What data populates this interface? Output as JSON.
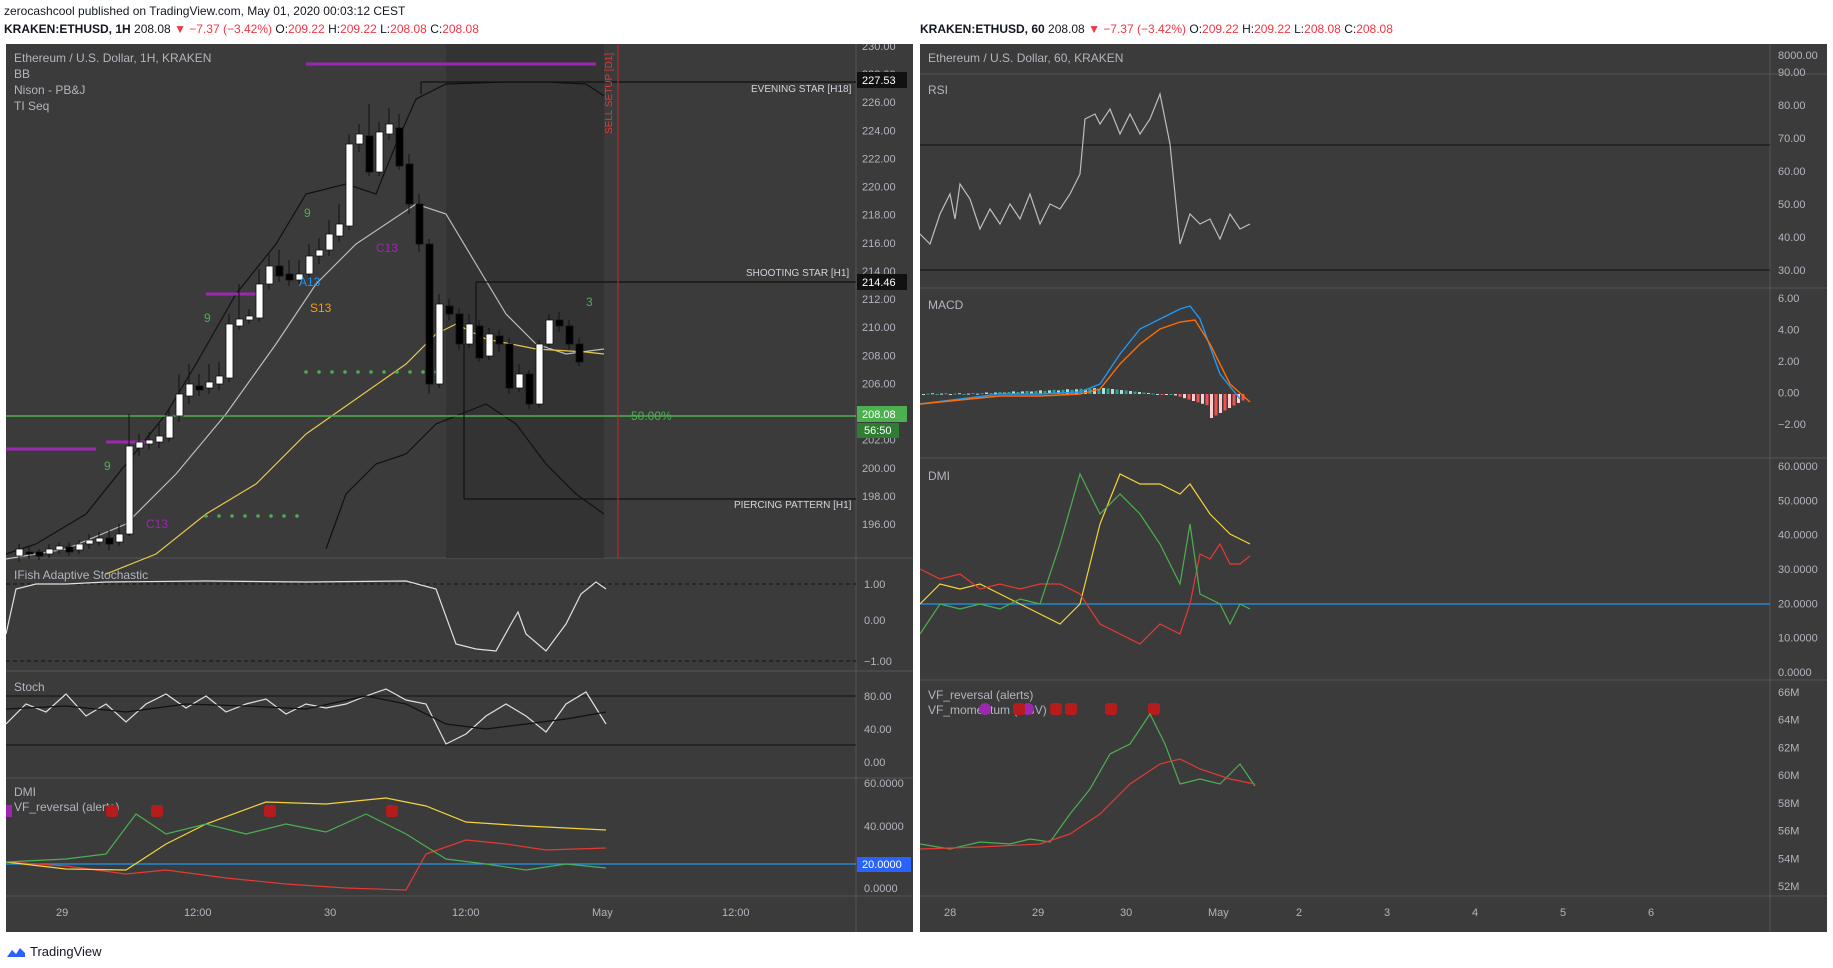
{
  "publisher": {
    "text": "zerocashcool published on TradingView.com, May 01, 2020 00:03:12 CEST"
  },
  "left_header": {
    "symbol": "KRAKEN:ETHUSD, 1H",
    "price": "208.08",
    "change": "▼ −7.37 (−3.42%)",
    "o_label": "O:",
    "o_value": "209.22",
    "h_label": "H:",
    "h_value": "209.22",
    "l_label": "L:",
    "l_value": "208.08",
    "c_label": "C:",
    "c_value": "208.08"
  },
  "right_header": {
    "symbol": "KRAKEN:ETHUSD, 60",
    "price": "208.08",
    "change": "▼ −7.37 (−3.42%)",
    "o_label": "O:",
    "o_value": "209.22",
    "h_label": "H:",
    "h_value": "209.22",
    "l_label": "L:",
    "l_value": "208.08",
    "c_label": "C:",
    "c_value": "208.08"
  },
  "left_chart": {
    "title": "Ethereum / U.S. Dollar, 1H, KRAKEN",
    "indicators": [
      "BB",
      "Nison - PB&J",
      "TI Seq"
    ],
    "price_axis": [
      "230.00",
      "228.00",
      "226.00",
      "224.00",
      "222.00",
      "220.00",
      "218.00",
      "216.00",
      "214.00",
      "212.00",
      "210.00",
      "208.00",
      "206.00",
      "204.00",
      "202.00",
      "200.00",
      "198.00",
      "196.00"
    ],
    "current_price": "208.08",
    "countdown": "56:50",
    "level_227": "227.53",
    "level_214": "214.46",
    "fib_label": "50.00%",
    "evening_star": "EVENING STAR [H18]",
    "shooting_star": "SHOOTING STAR [H1]",
    "piercing": "PIERCING PATTERN [H1]",
    "sell_setup": "SELL SETUP [D1]",
    "seq_labels": [
      "9",
      "9",
      "9",
      "A13",
      "S13",
      "C13",
      "C13",
      "3"
    ],
    "ifish_label": "IFish Adaptive Stochastic",
    "ifish_axis": [
      "1.00",
      "0.00",
      "−1.00"
    ],
    "stoch_label": "Stoch",
    "stoch_axis": [
      "80.00",
      "40.00",
      "0.00"
    ],
    "dmi_label": "DMI",
    "vf_label": "VF_reversal (alerts)",
    "dmi_axis": [
      "60.0000",
      "40.0000",
      "20.0000",
      "0.0000"
    ],
    "time_axis": [
      "29",
      "12:00",
      "30",
      "12:00",
      "May",
      "12:00"
    ]
  },
  "right_chart": {
    "title": "Ethereum / U.S. Dollar, 60, KRAKEN",
    "top_axis": "8000.00",
    "rsi_label": "RSI",
    "rsi_axis": [
      "90.00",
      "80.00",
      "70.00",
      "60.00",
      "50.00",
      "40.00",
      "30.00"
    ],
    "macd_label": "MACD",
    "macd_axis": [
      "6.00",
      "4.00",
      "2.00",
      "0.00",
      "−2.00"
    ],
    "dmi_label": "DMI",
    "dmi_axis": [
      "60.0000",
      "50.0000",
      "40.0000",
      "30.0000",
      "20.0000",
      "10.0000",
      "0.0000"
    ],
    "vf_label1": "VF_reversal (alerts)",
    "vf_label2": "VF_momentum (OBV)",
    "vf_axis": [
      "66M",
      "64M",
      "62M",
      "60M",
      "58M",
      "56M",
      "54M",
      "52M"
    ],
    "time_axis": [
      "28",
      "29",
      "30",
      "May",
      "2",
      "3",
      "4",
      "5",
      "6"
    ]
  },
  "footer": {
    "brand": "TradingView"
  },
  "colors": {
    "bg": "#3b3b3b",
    "up": "#ffffff",
    "down": "#000000",
    "green": "#4caf50",
    "yellow": "#f5d33a",
    "red": "#f23645",
    "purple": "#9c27b0",
    "blue": "#2196f3",
    "orange": "#ff6d00"
  }
}
